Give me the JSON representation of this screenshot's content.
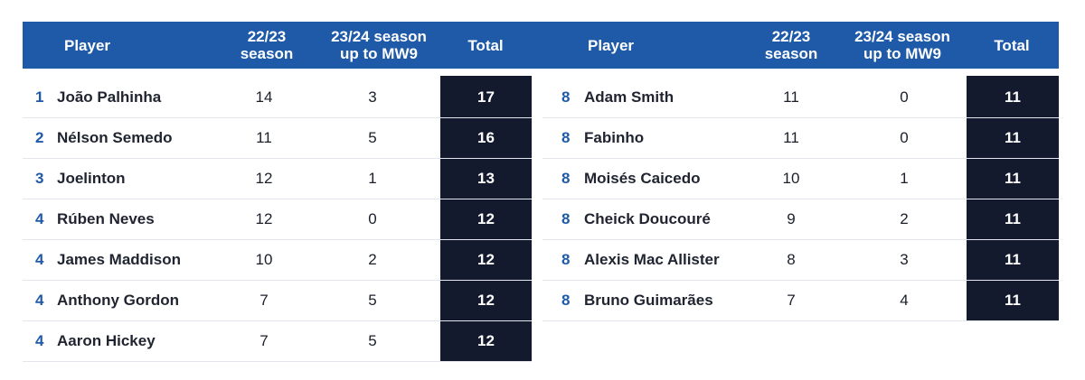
{
  "header": {
    "player_label": "Player",
    "season_2223_label": "22/23\nseason",
    "season_2324_label": "23/24 season\nup to MW9",
    "total_label": "Total"
  },
  "colors": {
    "header_bg": "#1e5aa8",
    "total_bg": "#141a2e",
    "rank_text": "#1e5aa8"
  },
  "left_table": [
    {
      "rank": "1",
      "player": "João Palhinha",
      "s2223": "14",
      "s2324": "3",
      "total": "17"
    },
    {
      "rank": "2",
      "player": "Nélson Semedo",
      "s2223": "11",
      "s2324": "5",
      "total": "16"
    },
    {
      "rank": "3",
      "player": "Joelinton",
      "s2223": "12",
      "s2324": "1",
      "total": "13"
    },
    {
      "rank": "4",
      "player": "Rúben Neves",
      "s2223": "12",
      "s2324": "0",
      "total": "12"
    },
    {
      "rank": "4",
      "player": "James Maddison",
      "s2223": "10",
      "s2324": "2",
      "total": "12"
    },
    {
      "rank": "4",
      "player": "Anthony Gordon",
      "s2223": "7",
      "s2324": "5",
      "total": "12"
    },
    {
      "rank": "4",
      "player": "Aaron Hickey",
      "s2223": "7",
      "s2324": "5",
      "total": "12"
    }
  ],
  "right_table": [
    {
      "rank": "8",
      "player": "Adam Smith",
      "s2223": "11",
      "s2324": "0",
      "total": "11"
    },
    {
      "rank": "8",
      "player": "Fabinho",
      "s2223": "11",
      "s2324": "0",
      "total": "11"
    },
    {
      "rank": "8",
      "player": "Moisés Caicedo",
      "s2223": "10",
      "s2324": "1",
      "total": "11"
    },
    {
      "rank": "8",
      "player": "Cheick Doucouré",
      "s2223": "9",
      "s2324": "2",
      "total": "11"
    },
    {
      "rank": "8",
      "player": "Alexis Mac Allister",
      "s2223": "8",
      "s2324": "3",
      "total": "11"
    },
    {
      "rank": "8",
      "player": "Bruno Guimarães",
      "s2223": "7",
      "s2324": "4",
      "total": "11"
    }
  ]
}
